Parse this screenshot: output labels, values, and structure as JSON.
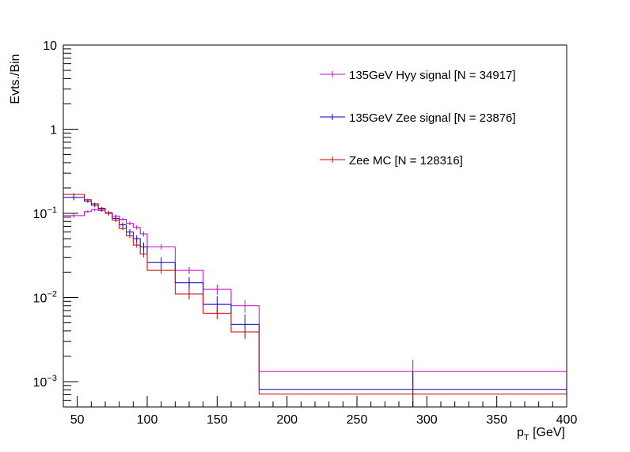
{
  "chart_data": {
    "type": "line",
    "title": "",
    "xlabel_main": "p",
    "xlabel_sub": "T",
    "xlabel_unit": " [GeV]",
    "ylabel": "Evts./Bin",
    "xlim": [
      40,
      400
    ],
    "ylim": [
      0.0005,
      10
    ],
    "yscale": "log",
    "x_ticks": [
      50,
      100,
      150,
      200,
      250,
      300,
      350,
      400
    ],
    "y_ticks": [
      {
        "value": 0.001,
        "base": "10",
        "exp": "−3"
      },
      {
        "value": 0.01,
        "base": "10",
        "exp": "−2"
      },
      {
        "value": 0.1,
        "base": "10",
        "exp": "−1"
      },
      {
        "value": 1,
        "label": "1"
      },
      {
        "value": 10,
        "label": "10"
      }
    ],
    "bin_edges": [
      40,
      55,
      60,
      65,
      70,
      75,
      80,
      85,
      90,
      95,
      100,
      120,
      140,
      160,
      180,
      400
    ],
    "series": [
      {
        "name": "135GeV Hyy signal [N = 34917]",
        "color": "#cc00cc",
        "values": [
          0.094,
          0.105,
          0.11,
          0.108,
          0.102,
          0.093,
          0.085,
          0.076,
          0.068,
          0.057,
          0.04,
          0.021,
          0.0125,
          0.008,
          0.00132
        ],
        "errors": [
          0.006,
          0.004,
          0.004,
          0.004,
          0.004,
          0.004,
          0.004,
          0.004,
          0.004,
          0.004,
          0.003,
          0.002,
          0.0017,
          0.0014,
          0.0005
        ]
      },
      {
        "name": "135GeV Zee signal [N = 23876]",
        "color": "#0000cc",
        "values": [
          0.155,
          0.14,
          0.125,
          0.113,
          0.1,
          0.087,
          0.073,
          0.06,
          0.05,
          0.04,
          0.026,
          0.015,
          0.0083,
          0.0048,
          0.00081
        ],
        "errors": [
          0.012,
          0.007,
          0.007,
          0.006,
          0.006,
          0.006,
          0.005,
          0.005,
          0.005,
          0.005,
          0.004,
          0.0025,
          0.002,
          0.0015,
          0.0005
        ]
      },
      {
        "name": "Zee MC [N = 128316]",
        "color": "#cc0000",
        "values": [
          0.168,
          0.145,
          0.13,
          0.115,
          0.1,
          0.083,
          0.066,
          0.054,
          0.042,
          0.033,
          0.021,
          0.011,
          0.0065,
          0.0039,
          0.00071
        ],
        "errors": [
          0.006,
          0.004,
          0.004,
          0.004,
          0.004,
          0.004,
          0.003,
          0.003,
          0.003,
          0.003,
          0.002,
          0.0015,
          0.001,
          0.0007,
          0.0002
        ]
      }
    ],
    "legend_position": "top-right"
  }
}
